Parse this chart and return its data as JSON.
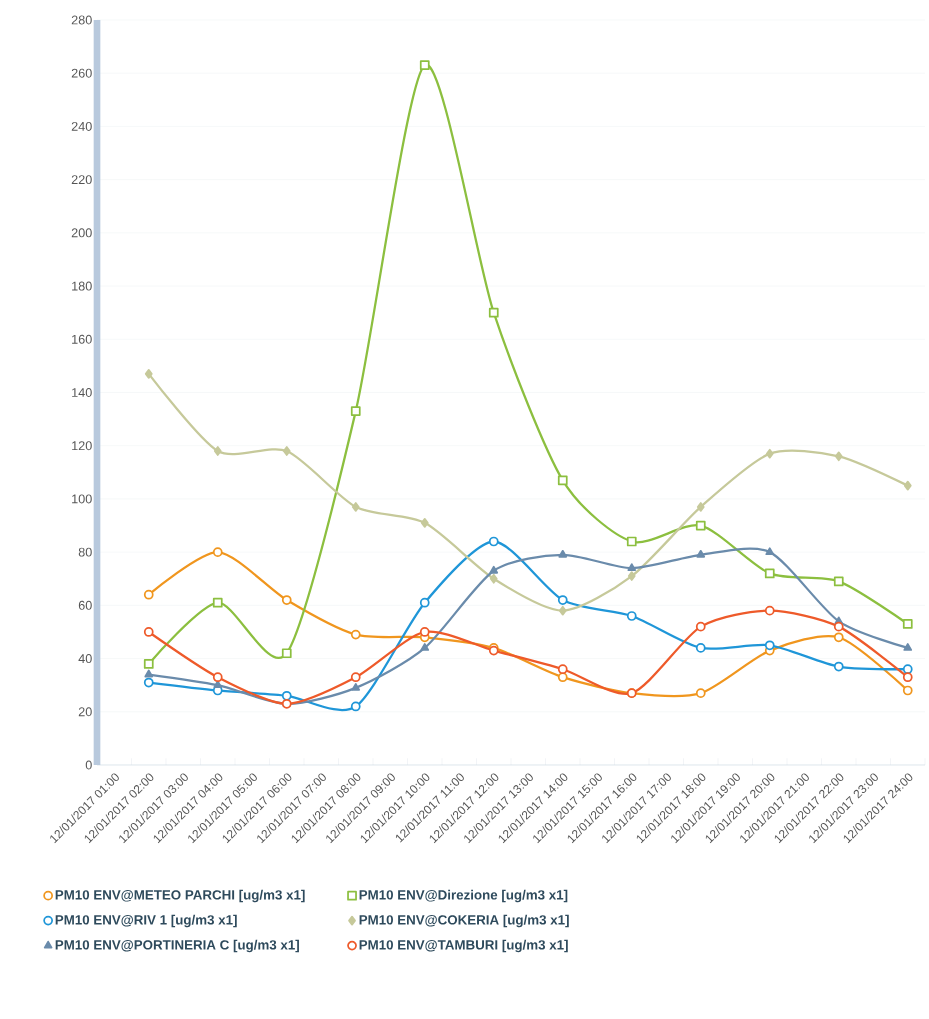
{
  "chart_data": {
    "type": "line",
    "categories": [
      "12/01/2017 01:00",
      "12/01/2017 02:00",
      "12/01/2017 03:00",
      "12/01/2017 04:00",
      "12/01/2017 05:00",
      "12/01/2017 06:00",
      "12/01/2017 07:00",
      "12/01/2017 08:00",
      "12/01/2017 09:00",
      "12/01/2017 10:00",
      "12/01/2017 11:00",
      "12/01/2017 12:00",
      "12/01/2017 13:00",
      "12/01/2017 14:00",
      "12/01/2017 15:00",
      "12/01/2017 16:00",
      "12/01/2017 17:00",
      "12/01/2017 18:00",
      "12/01/2017 19:00",
      "12/01/2017 20:00",
      "12/01/2017 21:00",
      "12/01/2017 22:00",
      "12/01/2017 23:00",
      "12/01/2017 24:00"
    ],
    "series": [
      {
        "name": "PM10 ENV@METEO PARCHI [ug/m3 x1]",
        "color": "#f0961e",
        "marker": "circle",
        "values": [
          null,
          64,
          null,
          80,
          null,
          62,
          null,
          49,
          null,
          48,
          null,
          44,
          null,
          33,
          null,
          27,
          null,
          27,
          null,
          43,
          null,
          48,
          null,
          28
        ]
      },
      {
        "name": "PM10 ENV@Direzione [ug/m3 x1]",
        "color": "#8cbf3f",
        "marker": "square",
        "values": [
          null,
          38,
          null,
          61,
          null,
          42,
          null,
          133,
          null,
          263,
          null,
          170,
          null,
          107,
          null,
          84,
          null,
          90,
          null,
          72,
          null,
          69,
          null,
          53
        ]
      },
      {
        "name": "PM10 ENV@RIV 1 [ug/m3 x1]",
        "color": "#1f96d8",
        "marker": "circle",
        "values": [
          null,
          31,
          null,
          28,
          null,
          26,
          null,
          22,
          null,
          61,
          null,
          84,
          null,
          62,
          null,
          56,
          null,
          44,
          null,
          45,
          null,
          37,
          null,
          36
        ]
      },
      {
        "name": "PM10 ENV@COKERIA [ug/m3 x1]",
        "color": "#c6c99a",
        "marker": "diamond",
        "values": [
          null,
          147,
          null,
          118,
          null,
          118,
          null,
          97,
          null,
          91,
          null,
          70,
          null,
          58,
          null,
          71,
          null,
          97,
          null,
          117,
          null,
          116,
          null,
          105
        ]
      },
      {
        "name": "PM10 ENV@PORTINERIA C [ug/m3 x1]",
        "color": "#6a8bab",
        "marker": "triangle",
        "values": [
          null,
          34,
          null,
          30,
          null,
          23,
          null,
          29,
          null,
          44,
          null,
          73,
          null,
          79,
          null,
          74,
          null,
          79,
          null,
          80,
          null,
          54,
          null,
          44
        ]
      },
      {
        "name": "PM10 ENV@TAMBURI [ug/m3 x1]",
        "color": "#ee5a2a",
        "marker": "circle",
        "values": [
          null,
          50,
          null,
          33,
          null,
          23,
          null,
          33,
          null,
          50,
          null,
          43,
          null,
          36,
          null,
          27,
          null,
          52,
          null,
          58,
          null,
          52,
          null,
          33
        ]
      }
    ],
    "ylim": [
      0,
      280
    ],
    "yticks": [
      0,
      20,
      40,
      60,
      80,
      100,
      120,
      140,
      160,
      180,
      200,
      220,
      240,
      260,
      280
    ],
    "grid": "y",
    "legend": "bottom"
  }
}
